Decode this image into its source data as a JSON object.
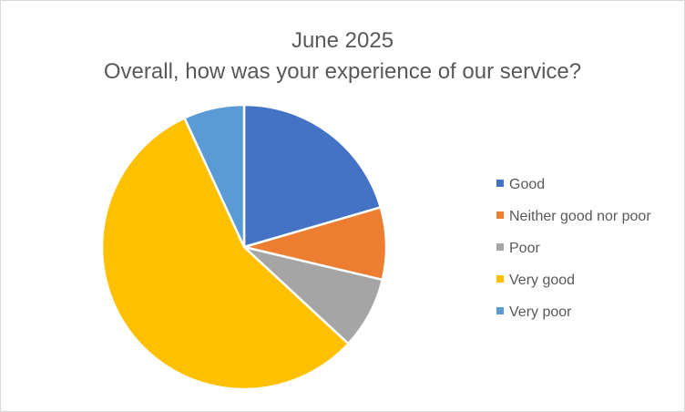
{
  "chart_data": {
    "type": "pie",
    "title": "June 2025",
    "subtitle": "Overall, how was your experience of our service?",
    "categories": [
      "Good",
      "Neither good nor poor",
      "Poor",
      "Very good",
      "Very poor"
    ],
    "values": [
      20.5,
      8.2,
      8.2,
      56.2,
      6.9
    ],
    "colors": [
      "#4472C4",
      "#ED7D31",
      "#A5A5A5",
      "#FFC000",
      "#5B9BD5"
    ],
    "legend_position": "right"
  }
}
